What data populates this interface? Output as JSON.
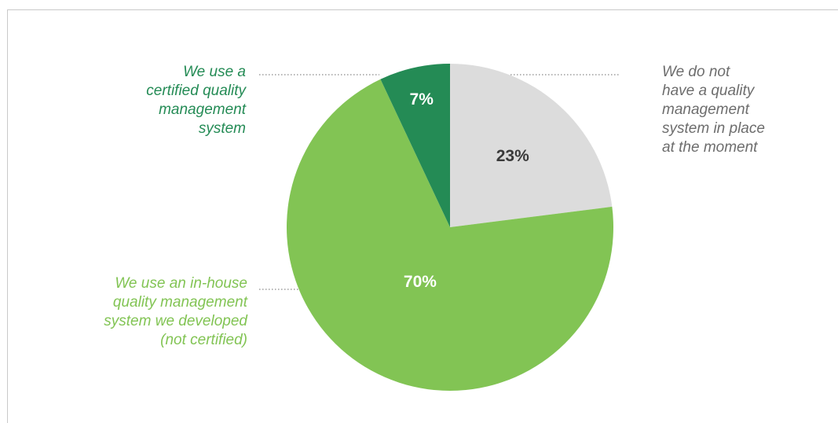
{
  "chart_data": {
    "type": "pie",
    "title": "",
    "slices": [
      {
        "label": "We do not have a quality management system in place at the moment",
        "label_lines": [
          "We do not",
          "have a quality",
          "management",
          "system in place",
          "at the moment"
        ],
        "value": 23,
        "value_label": "23%",
        "color": "#dcdcdc",
        "value_text_color": "#3a3a3a",
        "label_color": "#6d6d6d"
      },
      {
        "label": "We use an in-house quality management system we developed (not certified)",
        "label_lines": [
          "We use an in-house",
          "quality management",
          "system we developed",
          "(not certified)"
        ],
        "value": 70,
        "value_label": "70%",
        "color": "#82c454",
        "value_text_color": "#ffffff",
        "label_color": "#82c454"
      },
      {
        "label": "We use a certified quality management system",
        "label_lines": [
          "We use a",
          "certified quality",
          "management",
          "system"
        ],
        "value": 7,
        "value_label": "7%",
        "color": "#248b55",
        "value_text_color": "#ffffff",
        "label_color": "#248b55"
      }
    ],
    "start_angle_deg": 0,
    "direction": "clockwise",
    "leader_line_color": "#8a8a8a"
  }
}
